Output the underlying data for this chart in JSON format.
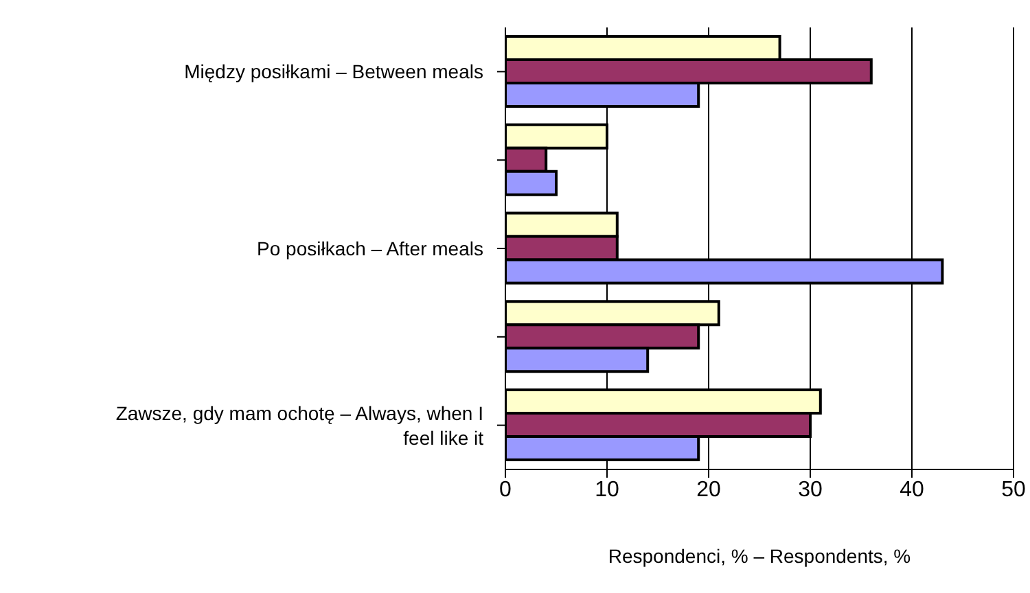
{
  "chart_data": {
    "type": "bar",
    "orientation": "horizontal",
    "xlabel": "Respondenci, % – Respondents, %",
    "categories": [
      "Między posiłkami – Between meals",
      null,
      "Po posiłkach – After meals",
      null,
      "Zawsze, gdy mam ochotę – Always, when I feel like it"
    ],
    "series": [
      {
        "color": "#ffffcc",
        "values": [
          27,
          10,
          11,
          21,
          31
        ]
      },
      {
        "color": "#993366",
        "values": [
          36,
          4,
          11,
          19,
          30
        ]
      },
      {
        "color": "#9999ff",
        "values": [
          19,
          5,
          43,
          14,
          19
        ]
      }
    ],
    "xlim": [
      0,
      50
    ],
    "xticks": [
      0,
      10,
      20,
      30,
      40,
      50
    ],
    "grid": "x",
    "legend": false
  }
}
